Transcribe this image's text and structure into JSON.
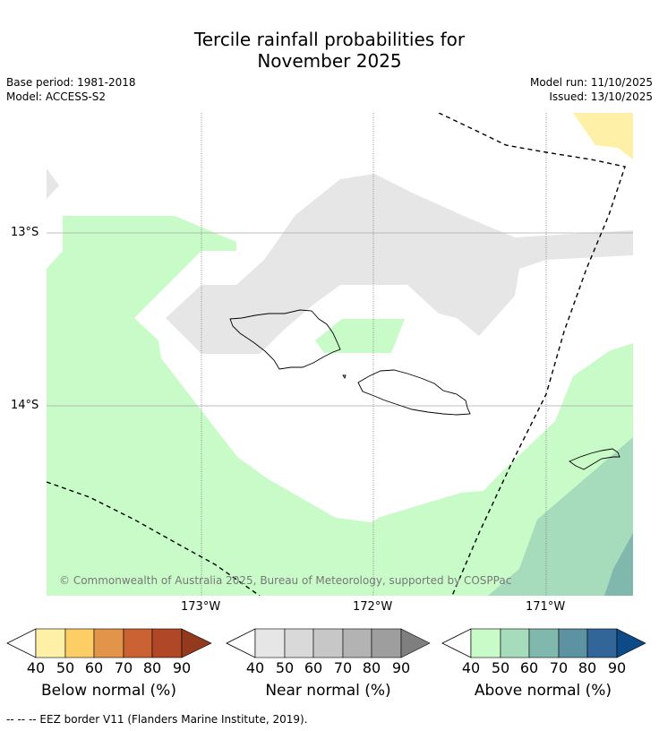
{
  "title_line1": "Tercile rainfall probabilities for",
  "title_line2": "November 2025",
  "base_period": "Base period: 1981-2018",
  "model": "Model: ACCESS-S2",
  "model_run": "Model run: 11/10/2025",
  "issued": "Issued: 13/10/2025",
  "lat_labels": [
    "13°S",
    "14°S"
  ],
  "lon_labels": [
    "173°W",
    "172°W",
    "171°W"
  ],
  "copyright": "© Commonwealth of Australia 2025, Bureau of Meteorology, supported by COSPPac",
  "footnote": "--  --  -- EEZ border V11 (Flanders Marine Institute, 2019).",
  "colorbars": [
    {
      "label": "Below normal (%)",
      "ticks": [
        "40",
        "50",
        "60",
        "70",
        "80",
        "90"
      ],
      "colors": [
        "#fef0a6",
        "#fdcd66",
        "#e1944a",
        "#cb6233",
        "#b04828",
        "#93391e"
      ]
    },
    {
      "label": "Near normal (%)",
      "ticks": [
        "40",
        "50",
        "60",
        "70",
        "80",
        "90"
      ],
      "colors": [
        "#e6e6e6",
        "#d9d9d9",
        "#c7c7c7",
        "#b3b3b3",
        "#9e9e9e",
        "#7f7f7f"
      ]
    },
    {
      "label": "Above normal (%)",
      "ticks": [
        "40",
        "50",
        "60",
        "70",
        "80",
        "90"
      ],
      "colors": [
        "#c9fbc9",
        "#a6dbbc",
        "#80b8ae",
        "#5c92a2",
        "#326598",
        "#0d4a87"
      ]
    }
  ]
}
